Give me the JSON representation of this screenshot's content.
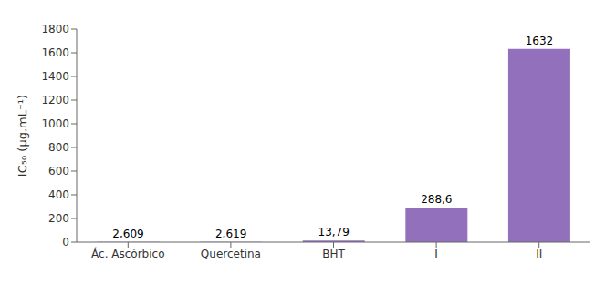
{
  "chart_data": {
    "type": "bar",
    "categories": [
      "Ác. Ascórbico",
      "Quercetina",
      "BHT",
      "I",
      "II"
    ],
    "values": [
      2.609,
      2.619,
      13.79,
      288.6,
      1632
    ],
    "value_labels": [
      "2,609",
      "2,619",
      "13,79",
      "288,6",
      "1632"
    ],
    "data_labels": true,
    "color": "#9370BB",
    "ylabel": "IC₅₀ (µg.mL⁻¹)",
    "ylim": [
      0,
      1800
    ],
    "yticks": [
      0,
      200,
      400,
      600,
      800,
      1000,
      1200,
      1400,
      1600,
      1800
    ],
    "grid": false
  }
}
